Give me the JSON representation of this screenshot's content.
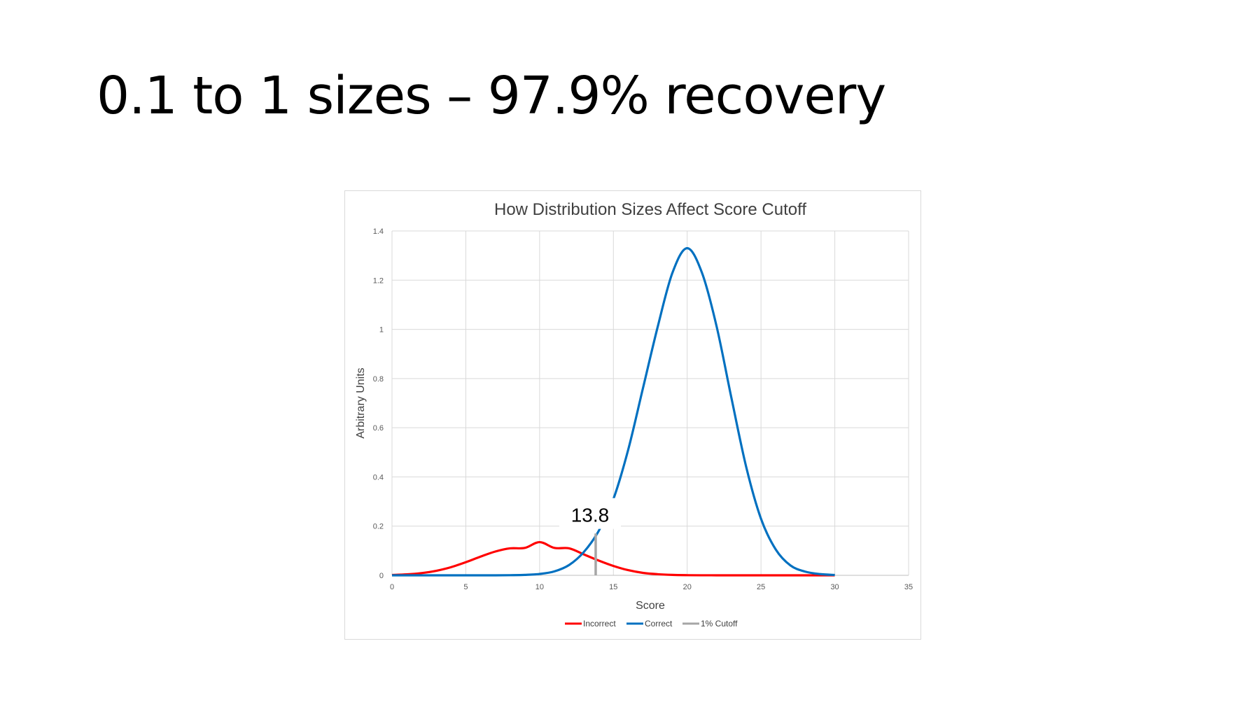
{
  "slide": {
    "title": "0.1 to 1 sizes – 97.9% recovery"
  },
  "chart_data": {
    "type": "line",
    "title": "How Distribution Sizes Affect Score Cutoff",
    "xlabel": "Score",
    "ylabel": "Arbitrary Units",
    "xlim": [
      0,
      35
    ],
    "ylim": [
      0,
      1.4
    ],
    "x_ticks": [
      "0",
      "5",
      "10",
      "15",
      "20",
      "25",
      "30",
      "35"
    ],
    "y_ticks": [
      "0",
      "0.2",
      "0.4",
      "0.6",
      "0.8",
      "1",
      "1.2",
      "1.4"
    ],
    "grid": true,
    "legend_position": "bottom",
    "x": [
      0,
      1,
      2,
      3,
      4,
      5,
      6,
      7,
      8,
      9,
      10,
      11,
      12,
      13,
      14,
      15,
      16,
      17,
      18,
      19,
      20,
      21,
      22,
      23,
      24,
      25,
      26,
      27,
      28,
      29,
      30
    ],
    "series": [
      {
        "name": "Incorrect",
        "color": "#ff0000",
        "values": [
          0.0015,
          0.0039,
          0.009,
          0.0183,
          0.0331,
          0.0532,
          0.076,
          0.0967,
          0.1097,
          0.1114,
          0.135,
          0.1114,
          0.1097,
          0.085,
          0.06,
          0.038,
          0.021,
          0.01,
          0.0045,
          0.0017,
          0.0006,
          0.0002,
          0.0001,
          0,
          0,
          0,
          0,
          0,
          0,
          0,
          0
        ]
      },
      {
        "name": "Correct",
        "color": "#0070c0",
        "values": [
          0,
          0,
          0,
          0,
          0,
          0,
          0,
          0,
          0.0006,
          0.0018,
          0.0055,
          0.016,
          0.042,
          0.095,
          0.18,
          0.31,
          0.51,
          0.76,
          1.01,
          1.23,
          1.33,
          1.23,
          1.01,
          0.72,
          0.44,
          0.23,
          0.105,
          0.04,
          0.015,
          0.005,
          0.0015
        ]
      },
      {
        "name": "1% Cutoff",
        "color": "#a6a6a6",
        "x": [
          13.8,
          13.8
        ],
        "values": [
          0,
          0.17
        ]
      }
    ],
    "annotations": [
      {
        "text": "13.8",
        "x": 13.8,
        "y": 0.24
      }
    ]
  }
}
